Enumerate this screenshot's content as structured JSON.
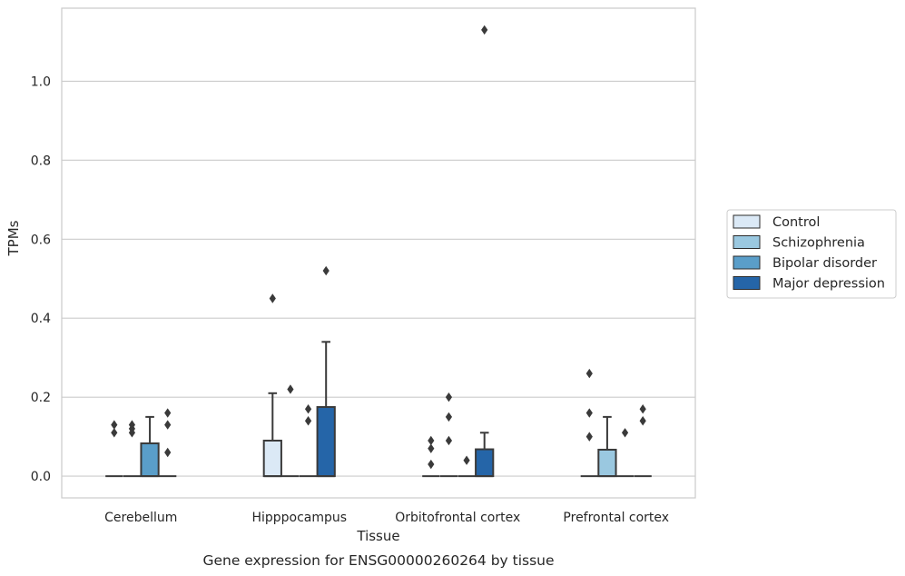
{
  "chart_data": {
    "type": "box",
    "title": "",
    "caption": "Gene expression for ENSG00000260264 by tissue",
    "xlabel": "Tissue",
    "ylabel": "TPMs",
    "ylim": [
      -0.055,
      1.185
    ],
    "yticks": [
      "0.0",
      "0.2",
      "0.4",
      "0.6",
      "0.8",
      "1.0"
    ],
    "ytick_values": [
      0.0,
      0.2,
      0.4,
      0.6,
      0.8,
      1.0
    ],
    "grid": "horizontal",
    "legend_position": "right",
    "categories": [
      "Cerebellum",
      "Hipppocampus",
      "Orbitofrontal cortex",
      "Prefrontal cortex"
    ],
    "series": [
      {
        "name": "Control",
        "color": "#dbe9f6",
        "boxes": [
          {
            "q1": 0,
            "median": 0,
            "q3": 0,
            "whisker_low": 0,
            "whisker_high": 0,
            "outliers": [
              0.11,
              0.13
            ]
          },
          {
            "q1": 0,
            "median": 0,
            "q3": 0.09,
            "whisker_low": 0,
            "whisker_high": 0.21,
            "outliers": [
              0.45
            ]
          },
          {
            "q1": 0,
            "median": 0,
            "q3": 0,
            "whisker_low": 0,
            "whisker_high": 0,
            "outliers": [
              0.03,
              0.07,
              0.09
            ]
          },
          {
            "q1": 0,
            "median": 0,
            "q3": 0,
            "whisker_low": 0,
            "whisker_high": 0,
            "outliers": [
              0.1,
              0.16,
              0.26
            ]
          }
        ]
      },
      {
        "name": "Schizophrenia",
        "color": "#9ac8e0",
        "boxes": [
          {
            "q1": 0,
            "median": 0,
            "q3": 0,
            "whisker_low": 0,
            "whisker_high": 0,
            "outliers": [
              0.11,
              0.12,
              0.13
            ]
          },
          {
            "q1": 0,
            "median": 0,
            "q3": 0,
            "whisker_low": 0,
            "whisker_high": 0,
            "outliers": [
              0.22
            ]
          },
          {
            "q1": 0,
            "median": 0,
            "q3": 0,
            "whisker_low": 0,
            "whisker_high": 0,
            "outliers": [
              0.09,
              0.15,
              0.2
            ]
          },
          {
            "q1": 0,
            "median": 0,
            "q3": 0.067,
            "whisker_low": 0,
            "whisker_high": 0.15,
            "outliers": []
          }
        ]
      },
      {
        "name": "Bipolar disorder",
        "color": "#5a9ec9",
        "boxes": [
          {
            "q1": 0,
            "median": 0,
            "q3": 0.083,
            "whisker_low": 0,
            "whisker_high": 0.15,
            "outliers": []
          },
          {
            "q1": 0,
            "median": 0,
            "q3": 0,
            "whisker_low": 0,
            "whisker_high": 0,
            "outliers": [
              0.14,
              0.17
            ]
          },
          {
            "q1": 0,
            "median": 0,
            "q3": 0,
            "whisker_low": 0,
            "whisker_high": 0,
            "outliers": [
              0.04
            ]
          },
          {
            "q1": 0,
            "median": 0,
            "q3": 0,
            "whisker_low": 0,
            "whisker_high": 0,
            "outliers": [
              0.11
            ]
          }
        ]
      },
      {
        "name": "Major depression",
        "color": "#2565a8",
        "boxes": [
          {
            "q1": 0,
            "median": 0,
            "q3": 0,
            "whisker_low": 0,
            "whisker_high": 0,
            "outliers": [
              0.06,
              0.13,
              0.16
            ]
          },
          {
            "q1": 0,
            "median": 0,
            "q3": 0.175,
            "whisker_low": 0,
            "whisker_high": 0.34,
            "outliers": [
              0.52
            ]
          },
          {
            "q1": 0,
            "median": 0,
            "q3": 0.068,
            "whisker_low": 0,
            "whisker_high": 0.11,
            "outliers": [
              1.13
            ]
          },
          {
            "q1": 0,
            "median": 0,
            "q3": 0,
            "whisker_low": 0,
            "whisker_high": 0,
            "outliers": [
              0.14,
              0.17
            ]
          }
        ]
      }
    ]
  }
}
